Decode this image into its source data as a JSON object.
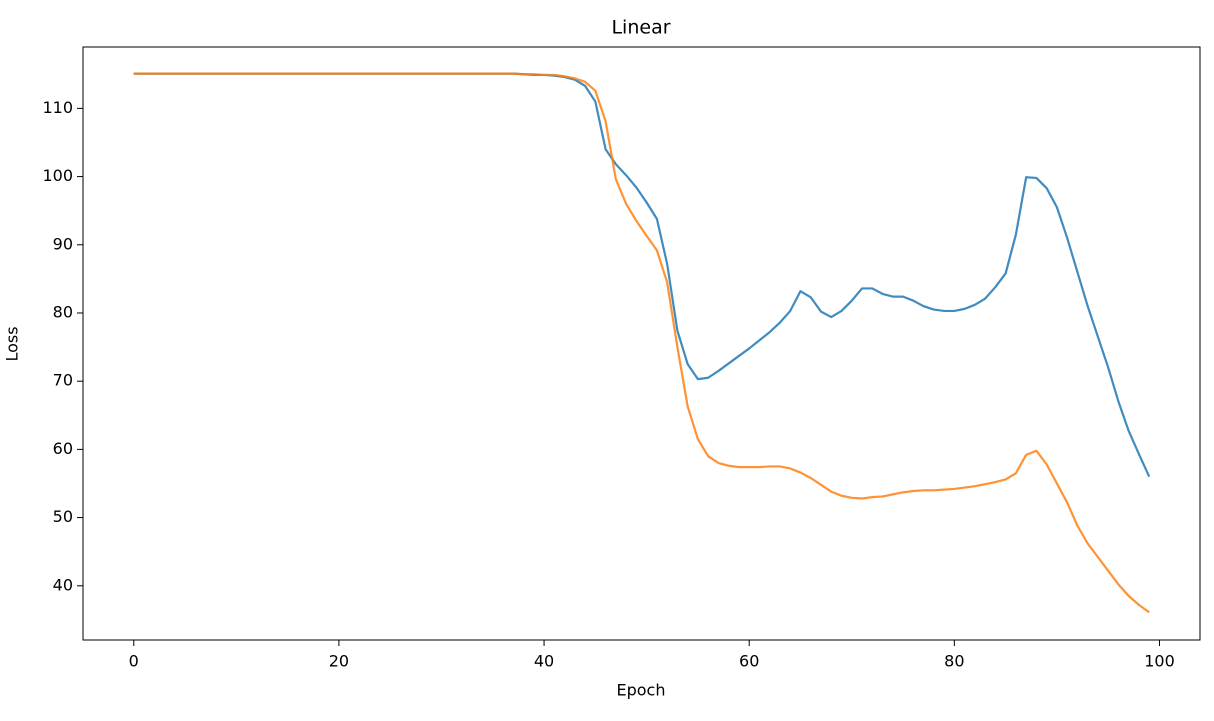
{
  "chart_data": {
    "type": "line",
    "title": "Linear",
    "xlabel": "Epoch",
    "ylabel": "Loss",
    "x": [
      0,
      1,
      2,
      3,
      4,
      5,
      6,
      7,
      8,
      9,
      10,
      11,
      12,
      13,
      14,
      15,
      16,
      17,
      18,
      19,
      20,
      21,
      22,
      23,
      24,
      25,
      26,
      27,
      28,
      29,
      30,
      31,
      32,
      33,
      34,
      35,
      36,
      37,
      38,
      39,
      40,
      41,
      42,
      43,
      44,
      45,
      46,
      47,
      48,
      49,
      50,
      51,
      52,
      53,
      54,
      55,
      56,
      57,
      58,
      59,
      60,
      61,
      62,
      63,
      64,
      65,
      66,
      67,
      68,
      69,
      70,
      71,
      72,
      73,
      74,
      75,
      76,
      77,
      78,
      79,
      80,
      81,
      82,
      83,
      84,
      85,
      86,
      87,
      88,
      89,
      90,
      91,
      92,
      93,
      94,
      95,
      96,
      97,
      98,
      99
    ],
    "series": [
      {
        "color": "#1f77b4",
        "values": [
          115.1,
          115.1,
          115.1,
          115.1,
          115.1,
          115.1,
          115.1,
          115.1,
          115.1,
          115.1,
          115.1,
          115.1,
          115.1,
          115.1,
          115.1,
          115.1,
          115.1,
          115.1,
          115.1,
          115.1,
          115.1,
          115.1,
          115.1,
          115.1,
          115.1,
          115.1,
          115.1,
          115.1,
          115.1,
          115.1,
          115.1,
          115.1,
          115.1,
          115.1,
          115.1,
          115.1,
          115.1,
          115.1,
          115.0,
          114.9,
          114.9,
          114.8,
          114.6,
          114.2,
          113.3,
          111.0,
          104.0,
          101.8,
          100.2,
          98.4,
          96.2,
          93.8,
          87.2,
          77.4,
          72.5,
          70.3,
          70.5,
          71.5,
          72.6,
          73.7,
          74.8,
          76.0,
          77.2,
          78.6,
          80.3,
          83.2,
          82.3,
          80.2,
          79.4,
          80.3,
          81.8,
          83.6,
          83.6,
          82.8,
          82.4,
          82.4,
          81.8,
          81.0,
          80.5,
          80.3,
          80.3,
          80.6,
          81.2,
          82.1,
          83.8,
          85.8,
          91.5,
          99.9,
          99.8,
          98.3,
          95.5,
          91.0,
          86.0,
          81.0,
          76.5,
          72.0,
          67.0,
          62.7,
          59.3,
          56.0
        ]
      },
      {
        "color": "#ff7f0e",
        "values": [
          115.1,
          115.1,
          115.1,
          115.1,
          115.1,
          115.1,
          115.1,
          115.1,
          115.1,
          115.1,
          115.1,
          115.1,
          115.1,
          115.1,
          115.1,
          115.1,
          115.1,
          115.1,
          115.1,
          115.1,
          115.1,
          115.1,
          115.1,
          115.1,
          115.1,
          115.1,
          115.1,
          115.1,
          115.1,
          115.1,
          115.1,
          115.1,
          115.1,
          115.1,
          115.1,
          115.1,
          115.1,
          115.1,
          115.0,
          115.0,
          114.9,
          114.9,
          114.7,
          114.4,
          113.9,
          112.6,
          108.1,
          99.6,
          96.0,
          93.5,
          91.3,
          89.2,
          84.5,
          75.0,
          66.3,
          61.5,
          59.0,
          58.0,
          57.6,
          57.4,
          57.4,
          57.4,
          57.5,
          57.5,
          57.2,
          56.6,
          55.8,
          54.8,
          53.8,
          53.2,
          52.9,
          52.8,
          53.0,
          53.1,
          53.4,
          53.7,
          53.9,
          54.0,
          54.0,
          54.1,
          54.2,
          54.4,
          54.6,
          54.9,
          55.2,
          55.6,
          56.5,
          59.2,
          59.8,
          57.8,
          55.0,
          52.2,
          48.8,
          46.2,
          44.2,
          42.2,
          40.2,
          38.5,
          37.2,
          36.1
        ]
      }
    ],
    "xlim": [
      -4.95,
      103.95
    ],
    "xticks": [
      0,
      20,
      40,
      60,
      80,
      100
    ],
    "ylim": [
      32.05,
      119.0
    ],
    "yticks": [
      40,
      50,
      60,
      70,
      80,
      90,
      100,
      110
    ]
  }
}
